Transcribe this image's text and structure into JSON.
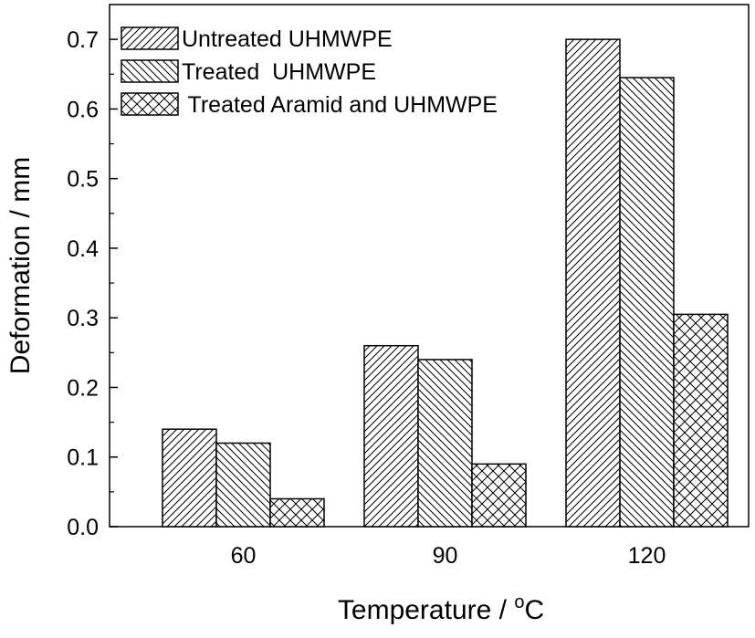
{
  "chart_data": {
    "type": "bar",
    "title": "",
    "xlabel": "Temperature / ",
    "xlabel_unit": "C",
    "xlabel_superscript": "o",
    "ylabel": "Deformation  / mm",
    "categories": [
      "60",
      "90",
      "120"
    ],
    "ylim": [
      0,
      0.75
    ],
    "yticks": [
      "0.0",
      "0.1",
      "0.2",
      "0.3",
      "0.4",
      "0.5",
      "0.6",
      "0.7"
    ],
    "grid": false,
    "legend_position": "top-left",
    "series": [
      {
        "name": "Untreated UHMWPE",
        "values": [
          0.14,
          0.26,
          0.7
        ],
        "pattern": "forward-diagonal"
      },
      {
        "name": "Treated  UHMWPE",
        "values": [
          0.12,
          0.24,
          0.645
        ],
        "pattern": "backward-diagonal"
      },
      {
        "name": " Treated Aramid and UHMWPE",
        "values": [
          0.04,
          0.09,
          0.305
        ],
        "pattern": "crosshatch"
      }
    ],
    "colors": {
      "stroke": "#000000",
      "fill": "#ffffff"
    }
  }
}
